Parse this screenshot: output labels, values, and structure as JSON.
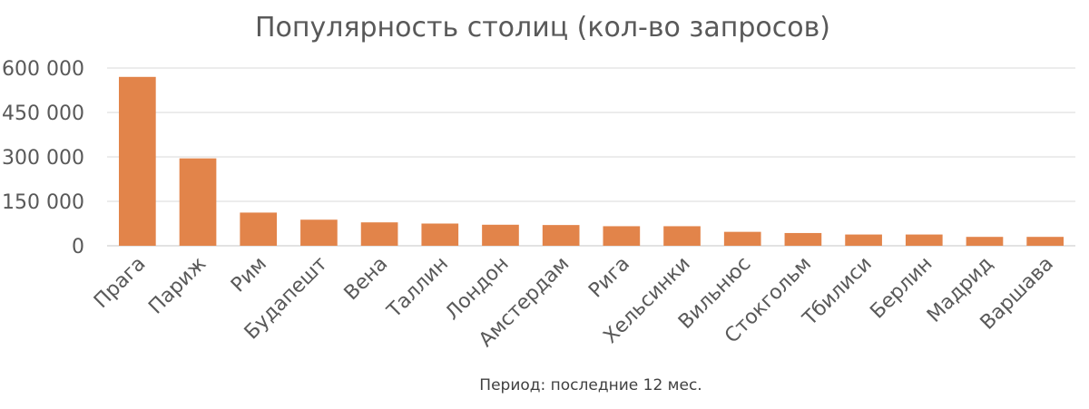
{
  "chart_data": {
    "type": "bar",
    "title": "Популярность столиц (кол-во запросов)",
    "categories": [
      "Прага",
      "Париж",
      "Рим",
      "Будапешт",
      "Вена",
      "Таллин",
      "Лондон",
      "Амстердам",
      "Рига",
      "Хельсинки",
      "Вильнюс",
      "Стокгольм",
      "Тбилиси",
      "Берлин",
      "Мадрид",
      "Варшава"
    ],
    "values": [
      570000,
      295000,
      112000,
      88000,
      79000,
      75000,
      71000,
      70000,
      66000,
      66000,
      47000,
      43000,
      38000,
      38000,
      30000,
      30000
    ],
    "yticks": [
      "0",
      "150 000",
      "300 000",
      "450 000",
      "600 000"
    ],
    "ylim": [
      0,
      600000
    ],
    "grid": true,
    "bar_color": "#E2844A",
    "note": "Период: последние 12 мес."
  }
}
